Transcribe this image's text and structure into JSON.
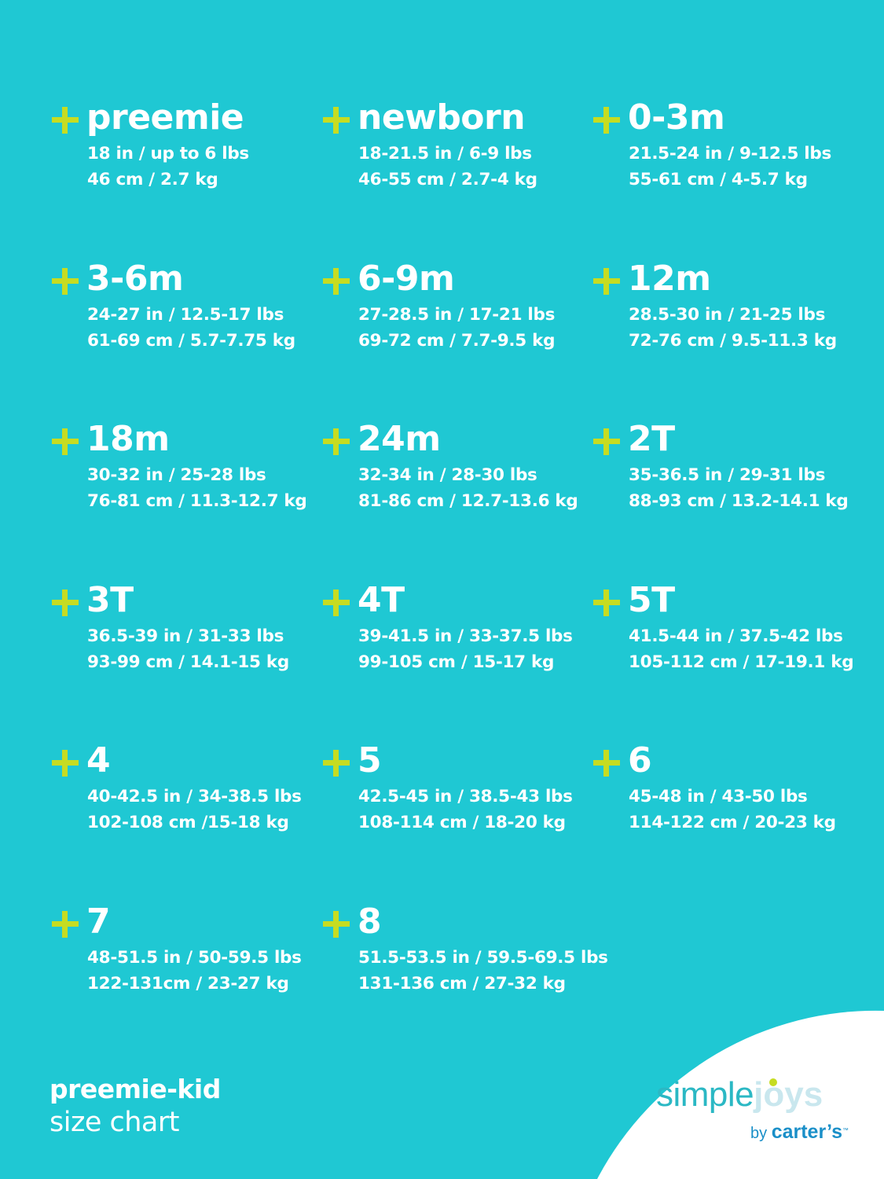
{
  "colors": {
    "background": "#1fc8d3",
    "plus": "#c6dc22",
    "text": "#ffffff"
  },
  "sizes": [
    {
      "name": "preemie",
      "imperial": "18 in / up to 6 lbs",
      "metric": "46 cm / 2.7 kg"
    },
    {
      "name": "newborn",
      "imperial": "18-21.5 in / 6-9 lbs",
      "metric": "46-55 cm / 2.7-4 kg"
    },
    {
      "name": "0-3m",
      "imperial": "21.5-24 in / 9-12.5 lbs",
      "metric": "55-61 cm / 4-5.7  kg"
    },
    {
      "name": "3-6m",
      "imperial": "24-27 in / 12.5-17 lbs",
      "metric": "61-69 cm / 5.7-7.75 kg"
    },
    {
      "name": "6-9m",
      "imperial": "27-28.5 in / 17-21 lbs",
      "metric": "69-72 cm / 7.7-9.5 kg"
    },
    {
      "name": "12m",
      "imperial": "28.5-30 in / 21-25 lbs",
      "metric": "72-76 cm / 9.5-11.3 kg"
    },
    {
      "name": "18m",
      "imperial": "30-32 in / 25-28 lbs",
      "metric": "76-81 cm / 11.3-12.7 kg"
    },
    {
      "name": "24m",
      "imperial": "32-34 in / 28-30 lbs",
      "metric": "81-86 cm / 12.7-13.6 kg"
    },
    {
      "name": "2T",
      "imperial": "35-36.5 in / 29-31 lbs",
      "metric": "88-93 cm / 13.2-14.1 kg"
    },
    {
      "name": "3T",
      "imperial": "36.5-39 in / 31-33 lbs",
      "metric": "93-99 cm / 14.1-15 kg"
    },
    {
      "name": "4T",
      "imperial": "39-41.5 in / 33-37.5 lbs",
      "metric": "99-105 cm / 15-17 kg"
    },
    {
      "name": "5T",
      "imperial": "41.5-44 in / 37.5-42 lbs",
      "metric": "105-112 cm / 17-19.1 kg"
    },
    {
      "name": "4",
      "imperial": "40-42.5 in / 34-38.5 lbs",
      "metric": "102-108 cm /15-18 kg"
    },
    {
      "name": "5",
      "imperial": "42.5-45 in / 38.5-43 lbs",
      "metric": "108-114 cm / 18-20 kg"
    },
    {
      "name": "6",
      "imperial": "45-48 in / 43-50 lbs",
      "metric": "114-122 cm / 20-23 kg"
    },
    {
      "name": "7",
      "imperial": "48-51.5 in / 50-59.5 lbs",
      "metric": "122-131cm / 23-27 kg"
    },
    {
      "name": "8",
      "imperial": "51.5-53.5 in / 59.5-69.5 lbs",
      "metric": "131-136 cm / 27-32 kg"
    }
  ],
  "footer": {
    "line1": "preemie-kid",
    "line2": "size chart"
  },
  "logo": {
    "simple": "simple",
    "joys": "joys",
    "by": "by",
    "brand": "carter’s",
    "tm": "™"
  }
}
